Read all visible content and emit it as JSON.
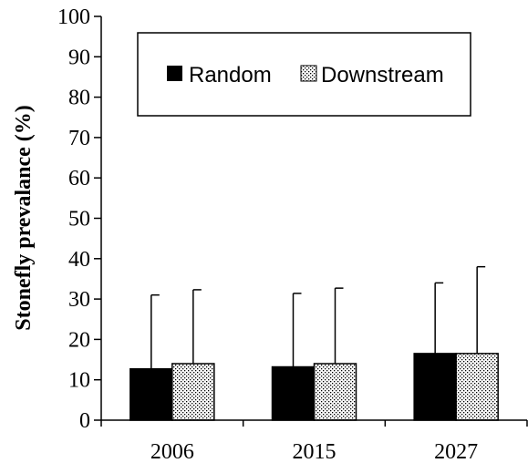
{
  "chart_data": {
    "type": "bar",
    "categories": [
      "2006",
      "2015",
      "2027"
    ],
    "series": [
      {
        "name": "Random",
        "values": [
          12.7,
          13.2,
          16.5
        ],
        "errors": [
          18.3,
          18.2,
          17.5
        ],
        "fill": "#000000",
        "pattern": "solid"
      },
      {
        "name": "Downstream",
        "values": [
          14.0,
          14.0,
          16.5
        ],
        "errors": [
          18.3,
          18.7,
          21.5
        ],
        "fill": "#ffffff",
        "pattern": "dotted"
      }
    ],
    "ylabel": "Stonefly prevalance (%)",
    "xlabel": "",
    "ylim": [
      0,
      100
    ],
    "yticks": [
      0,
      10,
      20,
      30,
      40,
      50,
      60,
      70,
      80,
      90,
      100
    ],
    "error_bars": "upper",
    "legend_position": "top-center",
    "grid": false
  }
}
